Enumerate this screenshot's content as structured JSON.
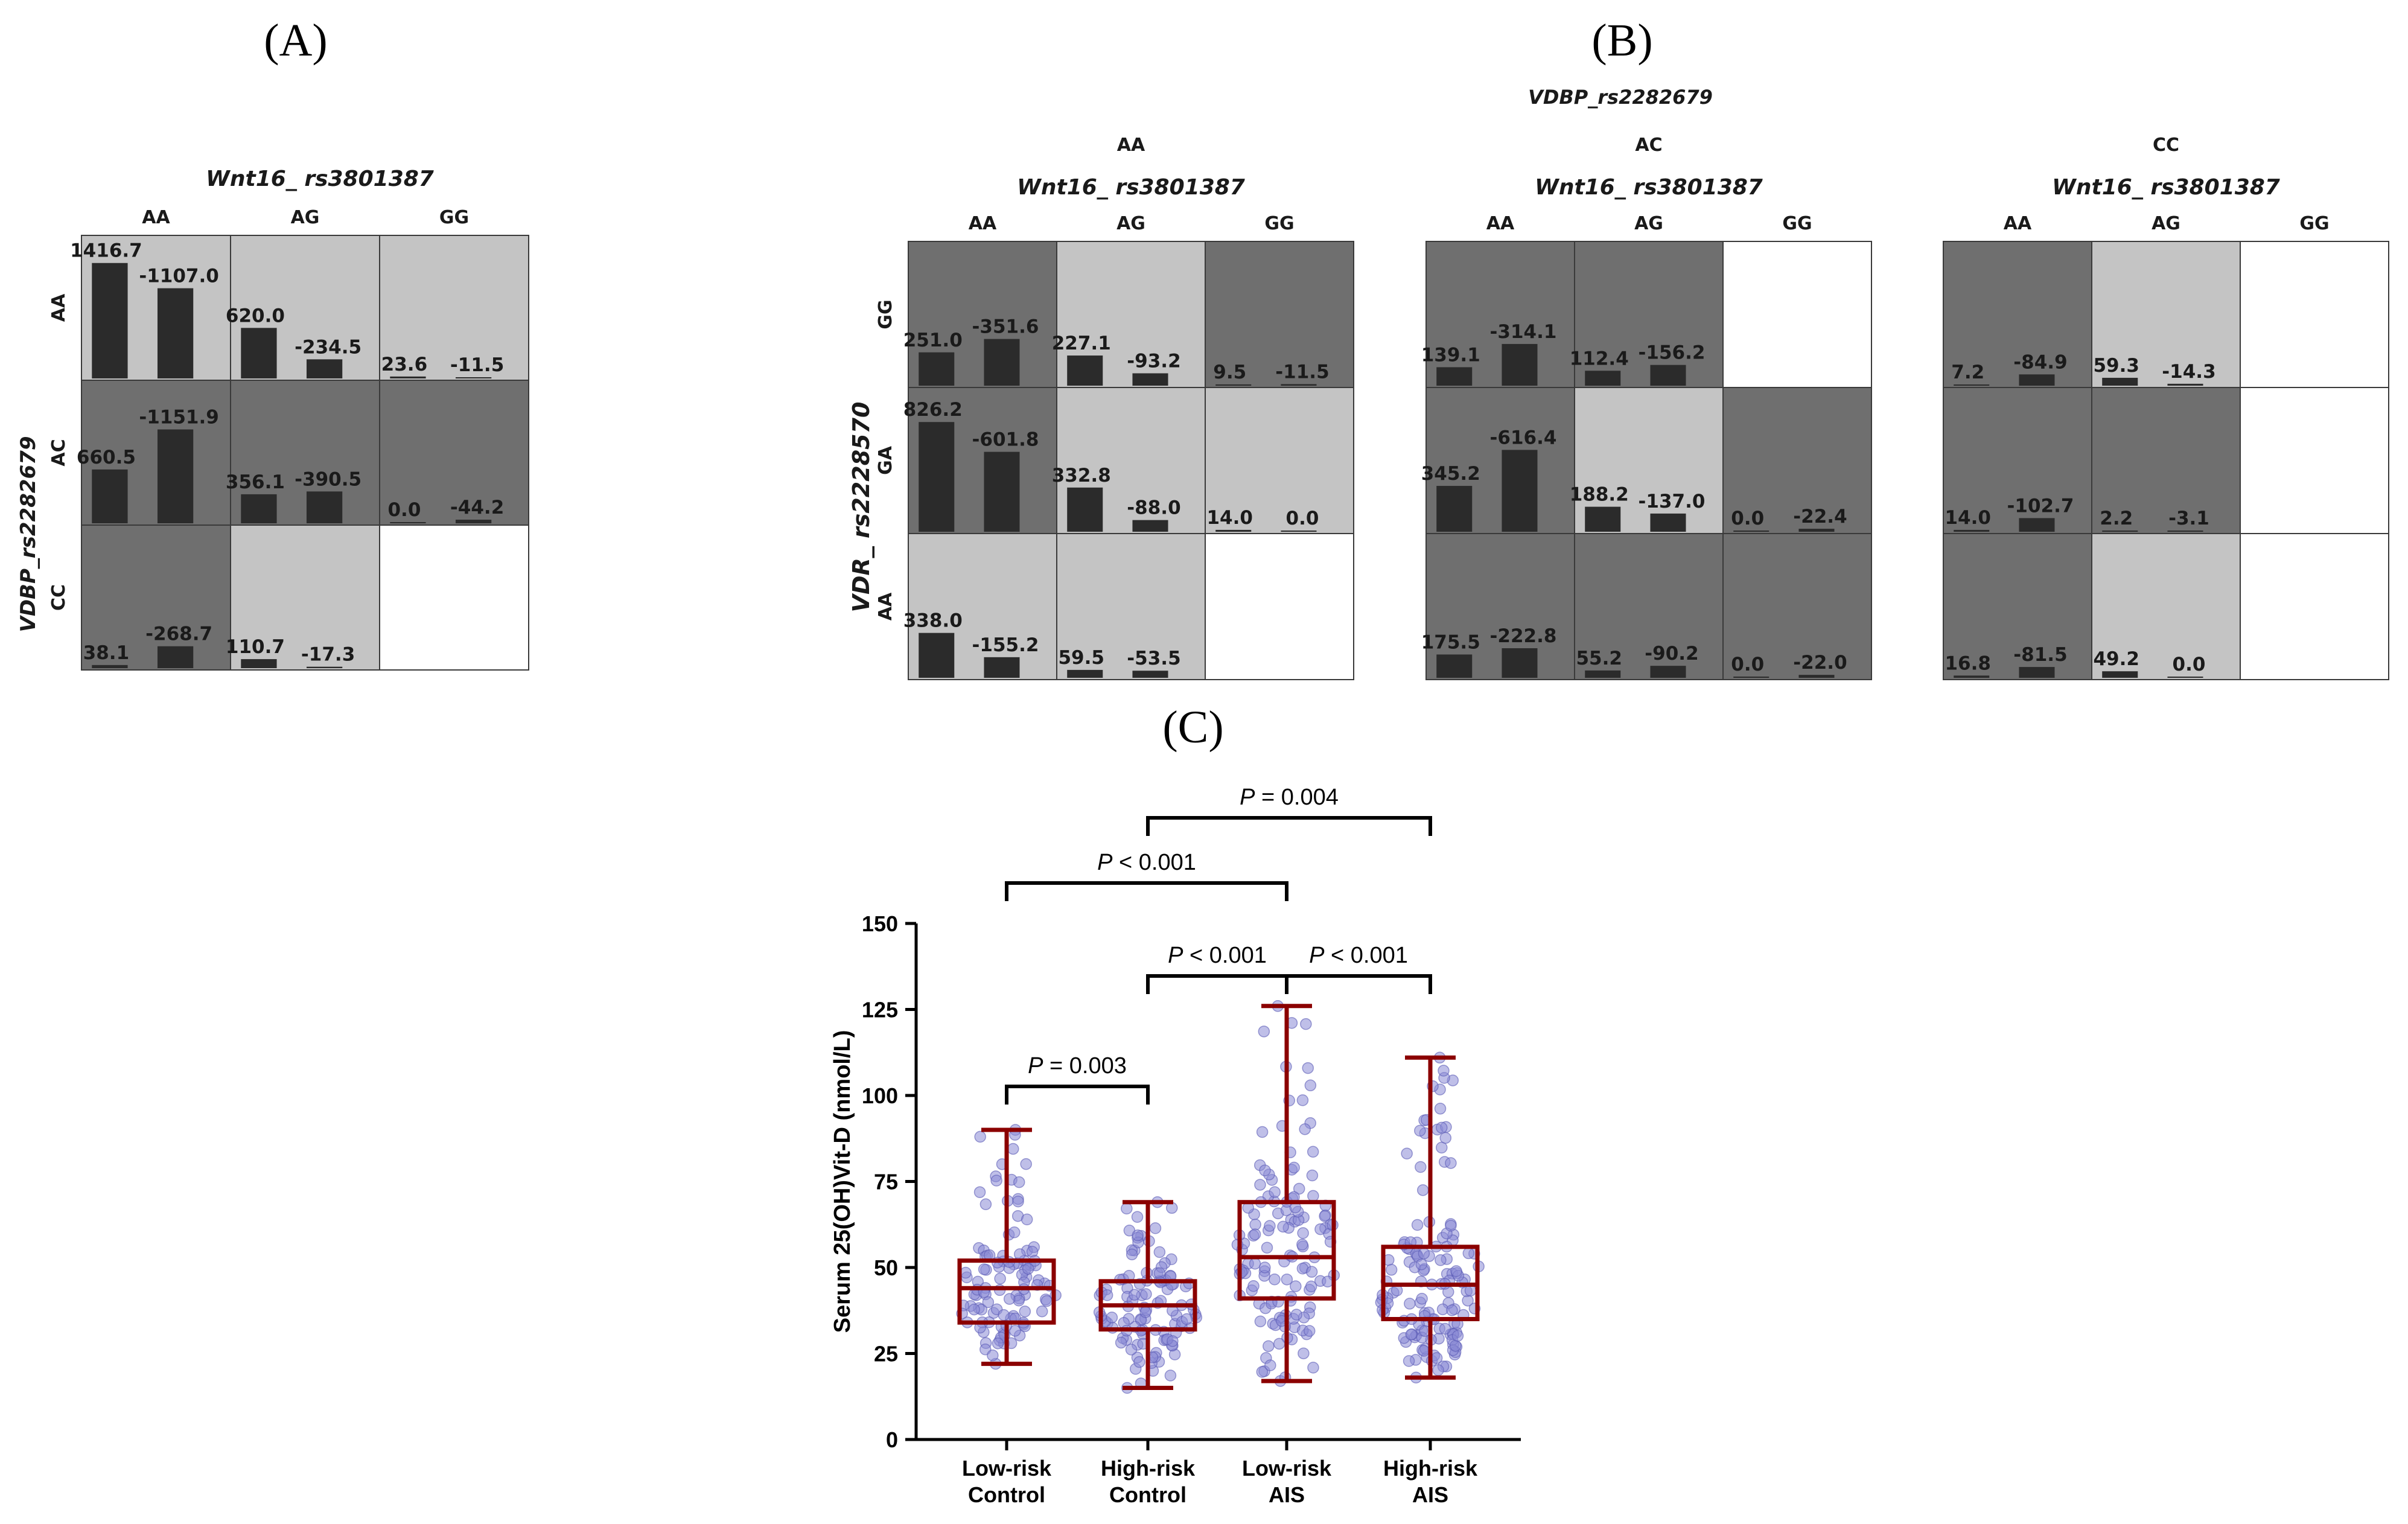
{
  "panels": {
    "A": "(A)",
    "B": "(B)",
    "C": "(C)"
  },
  "colors": {
    "dark_cell": "#6f6f6f",
    "light_cell": "#c4c4c4",
    "empty_cell": "#ffffff",
    "bar": "#2b2b2b",
    "box": "#8b0000",
    "point": "#8a8ad6",
    "point_stroke": "#5b5bb5"
  },
  "panelA": {
    "title_gene": "Wnt16",
    "title_snp": "_ rs3801387",
    "col_labels": [
      "AA",
      "AG",
      "GG"
    ],
    "row_gene": "VDBP",
    "row_snp": "_rs2282679",
    "row_labels": [
      "AA",
      "AC",
      "CC"
    ],
    "cells": [
      [
        {
          "shade": "light",
          "values": [
            1416.7,
            -1107.0
          ],
          "labels": [
            "1416.7",
            "-1107.0"
          ]
        },
        {
          "shade": "light",
          "values": [
            620.0,
            -234.5
          ],
          "labels": [
            "620.0",
            "-234.5"
          ]
        },
        {
          "shade": "light",
          "values": [
            23.6,
            -11.5
          ],
          "labels": [
            "23.6",
            "-11.5"
          ]
        }
      ],
      [
        {
          "shade": "dark",
          "values": [
            660.5,
            -1151.9
          ],
          "labels": [
            "660.5",
            "-1151.9"
          ]
        },
        {
          "shade": "dark",
          "values": [
            356.1,
            -390.5
          ],
          "labels": [
            "356.1",
            "-390.5"
          ]
        },
        {
          "shade": "dark",
          "values": [
            0.0,
            -44.2
          ],
          "labels": [
            "0.0",
            "-44.2"
          ]
        }
      ],
      [
        {
          "shade": "dark",
          "values": [
            38.1,
            -268.7
          ],
          "labels": [
            "38.1",
            "-268.7"
          ]
        },
        {
          "shade": "light",
          "values": [
            110.7,
            -17.3
          ],
          "labels": [
            "110.7",
            "-17.3"
          ]
        },
        {
          "shade": "empty"
        }
      ]
    ]
  },
  "panelB": {
    "super_gene": "VDBP",
    "super_snp": "_rs2282679",
    "row_gene": "VDR",
    "row_snp": "_ rs2228570",
    "row_labels": [
      "GG",
      "GA",
      "AA"
    ],
    "subpanels": [
      {
        "genotype": "AA",
        "title_gene": "Wnt16",
        "title_snp": "_ rs3801387",
        "col_labels": [
          "AA",
          "AG",
          "GG"
        ],
        "cells": [
          [
            {
              "shade": "dark",
              "values": [
                251.0,
                -351.6
              ],
              "labels": [
                "251.0",
                "-351.6"
              ]
            },
            {
              "shade": "light",
              "values": [
                227.1,
                -93.2
              ],
              "labels": [
                "227.1",
                "-93.2"
              ]
            },
            {
              "shade": "dark",
              "values": [
                9.5,
                -11.5
              ],
              "labels": [
                "9.5",
                "-11.5"
              ]
            }
          ],
          [
            {
              "shade": "dark",
              "values": [
                826.2,
                -601.8
              ],
              "labels": [
                "826.2",
                "-601.8"
              ]
            },
            {
              "shade": "light",
              "values": [
                332.8,
                -88.0
              ],
              "labels": [
                "332.8",
                "-88.0"
              ]
            },
            {
              "shade": "light",
              "values": [
                14.0,
                0.0
              ],
              "labels": [
                "14.0",
                "0.0"
              ]
            }
          ],
          [
            {
              "shade": "light",
              "values": [
                338.0,
                -155.2
              ],
              "labels": [
                "338.0",
                "-155.2"
              ]
            },
            {
              "shade": "light",
              "values": [
                59.5,
                -53.5
              ],
              "labels": [
                "59.5",
                "-53.5"
              ]
            },
            {
              "shade": "empty"
            }
          ]
        ]
      },
      {
        "genotype": "AC",
        "title_gene": "Wnt16",
        "title_snp": "_ rs3801387",
        "col_labels": [
          "AA",
          "AG",
          "GG"
        ],
        "cells": [
          [
            {
              "shade": "dark",
              "values": [
                139.1,
                -314.1
              ],
              "labels": [
                "139.1",
                "-314.1"
              ]
            },
            {
              "shade": "dark",
              "values": [
                112.4,
                -156.2
              ],
              "labels": [
                "112.4",
                "-156.2"
              ]
            },
            {
              "shade": "empty"
            }
          ],
          [
            {
              "shade": "dark",
              "values": [
                345.2,
                -616.4
              ],
              "labels": [
                "345.2",
                "-616.4"
              ]
            },
            {
              "shade": "light",
              "values": [
                188.2,
                -137.0
              ],
              "labels": [
                "188.2",
                "-137.0"
              ]
            },
            {
              "shade": "dark",
              "values": [
                0.0,
                -22.4
              ],
              "labels": [
                "0.0",
                "-22.4"
              ]
            }
          ],
          [
            {
              "shade": "dark",
              "values": [
                175.5,
                -222.8
              ],
              "labels": [
                "175.5",
                "-222.8"
              ]
            },
            {
              "shade": "dark",
              "values": [
                55.2,
                -90.2
              ],
              "labels": [
                "55.2",
                "-90.2"
              ]
            },
            {
              "shade": "dark",
              "values": [
                0.0,
                -22.0
              ],
              "labels": [
                "0.0",
                "-22.0"
              ]
            }
          ]
        ]
      },
      {
        "genotype": "CC",
        "title_gene": "Wnt16",
        "title_snp": "_ rs3801387",
        "col_labels": [
          "AA",
          "AG",
          "GG"
        ],
        "cells": [
          [
            {
              "shade": "dark",
              "values": [
                7.2,
                -84.9
              ],
              "labels": [
                "7.2",
                "-84.9"
              ]
            },
            {
              "shade": "light",
              "values": [
                59.3,
                -14.3
              ],
              "labels": [
                "59.3",
                "-14.3"
              ]
            },
            {
              "shade": "empty"
            }
          ],
          [
            {
              "shade": "dark",
              "values": [
                14.0,
                -102.7
              ],
              "labels": [
                "14.0",
                "-102.7"
              ]
            },
            {
              "shade": "dark",
              "values": [
                2.2,
                -3.1
              ],
              "labels": [
                "2.2",
                "-3.1"
              ]
            },
            {
              "shade": "empty"
            }
          ],
          [
            {
              "shade": "dark",
              "values": [
                16.8,
                -81.5
              ],
              "labels": [
                "16.8",
                "-81.5"
              ]
            },
            {
              "shade": "light",
              "values": [
                49.2,
                0.0
              ],
              "labels": [
                "49.2",
                "0.0"
              ]
            },
            {
              "shade": "empty"
            }
          ]
        ]
      }
    ]
  },
  "chart_data": {
    "type": "box",
    "title": "",
    "ylabel": "Serum 25(OH)Vit-D (nmol/L)",
    "ylim": [
      0,
      150
    ],
    "yticks": [
      0,
      25,
      50,
      75,
      100,
      125,
      150
    ],
    "ytick_labels": [
      "0",
      "25",
      "50",
      "75",
      "100",
      "125",
      "150"
    ],
    "categories": [
      [
        "Low-risk",
        "Control"
      ],
      [
        "High-risk",
        "Control"
      ],
      [
        "Low-risk",
        "AIS"
      ],
      [
        "High-risk",
        "AIS"
      ]
    ],
    "boxes": [
      {
        "min": 22,
        "q1": 34,
        "median": 44,
        "q3": 52,
        "max": 90,
        "n": 110
      },
      {
        "min": 15,
        "q1": 32,
        "median": 39,
        "q3": 46,
        "max": 69,
        "n": 110
      },
      {
        "min": 17,
        "q1": 41,
        "median": 53,
        "q3": 69,
        "max": 126,
        "n": 130
      },
      {
        "min": 18,
        "q1": 35,
        "median": 45,
        "q3": 56,
        "max": 111,
        "n": 140
      }
    ],
    "comparisons": [
      {
        "from": 0,
        "to": 1,
        "p_symbol": "P",
        "p_text": " = 0.003"
      },
      {
        "from": 1,
        "to": 2,
        "p_symbol": "P",
        "p_text": " < 0.001"
      },
      {
        "from": 2,
        "to": 3,
        "p_symbol": "P",
        "p_text": " < 0.001"
      },
      {
        "from": 0,
        "to": 2,
        "p_symbol": "P",
        "p_text": " < 0.001"
      },
      {
        "from": 1,
        "to": 3,
        "p_symbol": "P",
        "p_text": " = 0.004"
      }
    ]
  }
}
